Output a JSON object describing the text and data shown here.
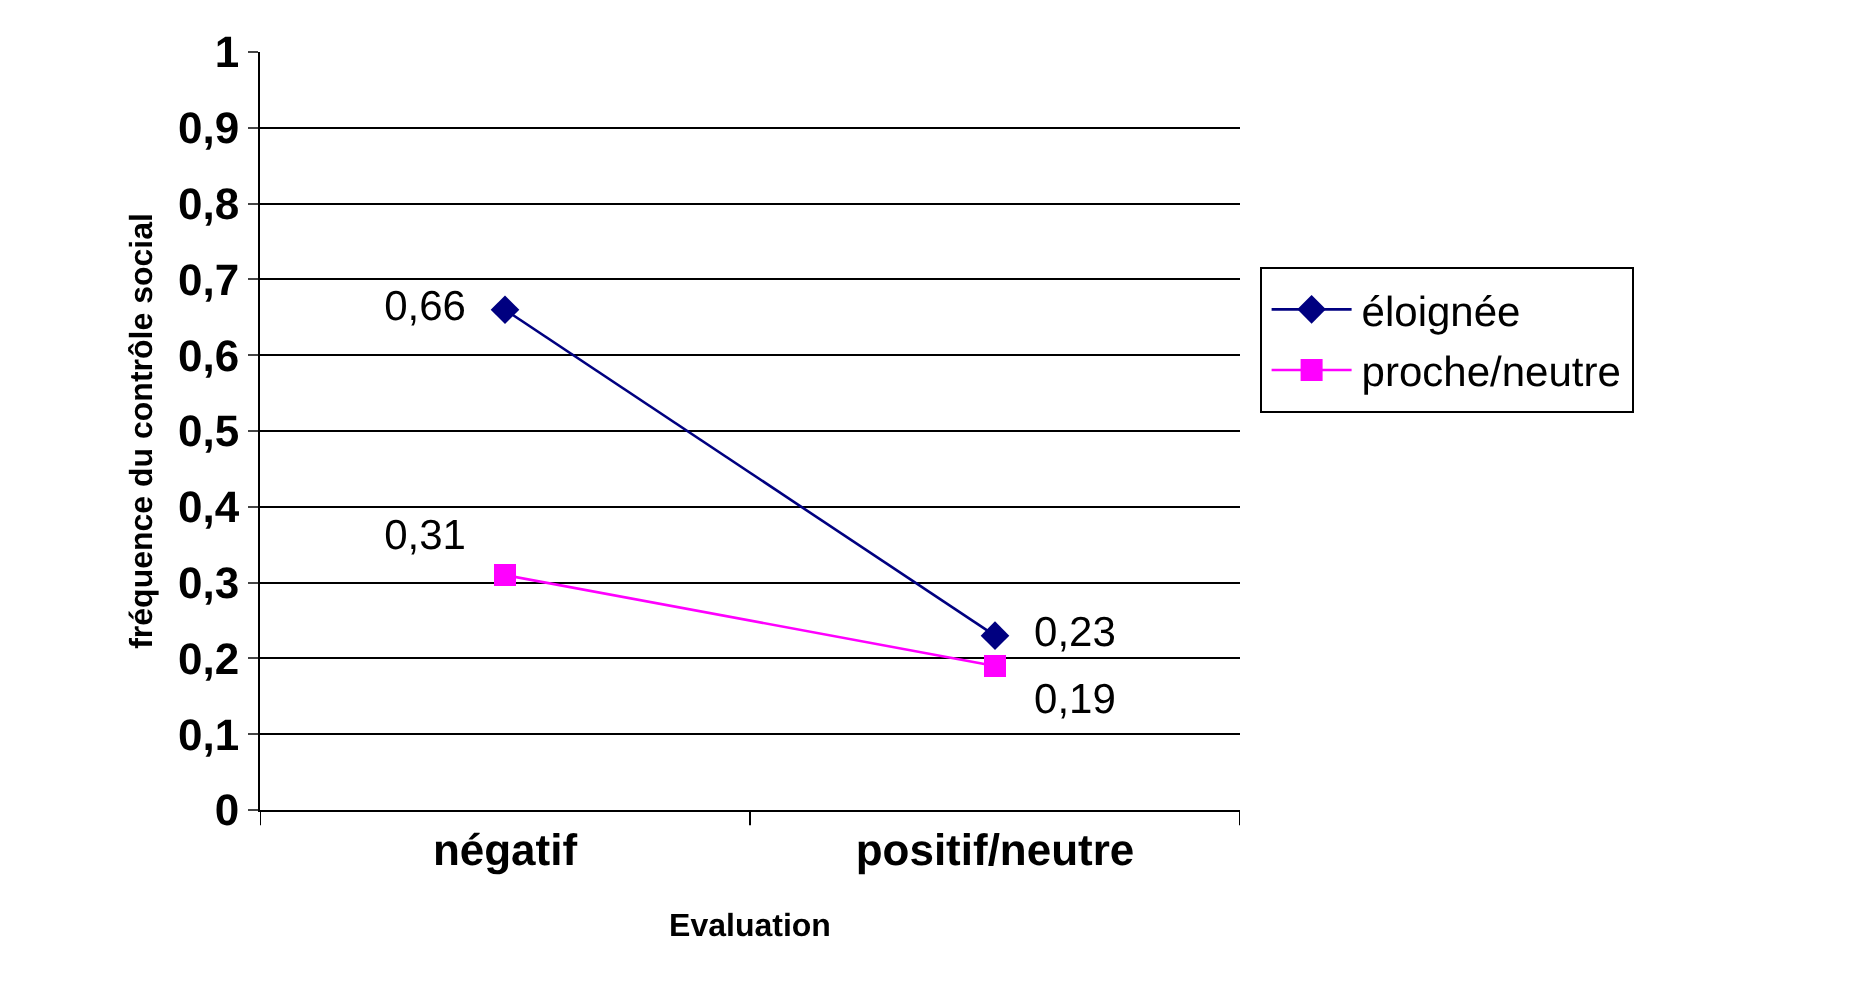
{
  "chart_data": {
    "type": "line",
    "xlabel": "Evaluation",
    "ylabel": "fréquence du contrôle social",
    "categories": [
      "négatif",
      "positif/neutre"
    ],
    "series": [
      {
        "name": "éloignée",
        "color": "#000080",
        "values": [
          0.66,
          0.23
        ],
        "value_labels": [
          "0,66",
          "0,23"
        ],
        "marker": "diamond"
      },
      {
        "name": "proche/neutre",
        "color": "#ff00ff",
        "values": [
          0.31,
          0.19
        ],
        "value_labels": [
          "0,31",
          "0,19"
        ],
        "marker": "square"
      }
    ],
    "ylim": [
      0,
      1
    ],
    "yticks": [
      0,
      {
        "value": 0.1,
        "label": "0,1"
      },
      {
        "value": 0.2,
        "label": "0,2"
      },
      {
        "value": 0.3,
        "label": "0,3"
      },
      {
        "value": 0.4,
        "label": "0,4"
      },
      {
        "value": 0.5,
        "label": "0,5"
      },
      {
        "value": 0.6,
        "label": "0,6"
      },
      {
        "value": 0.7,
        "label": "0,7"
      },
      {
        "value": 0.8,
        "label": "0,8"
      },
      {
        "value": 0.9,
        "label": "0,9"
      },
      1
    ],
    "grid": "y",
    "legend": "right",
    "line_style": "solid"
  }
}
